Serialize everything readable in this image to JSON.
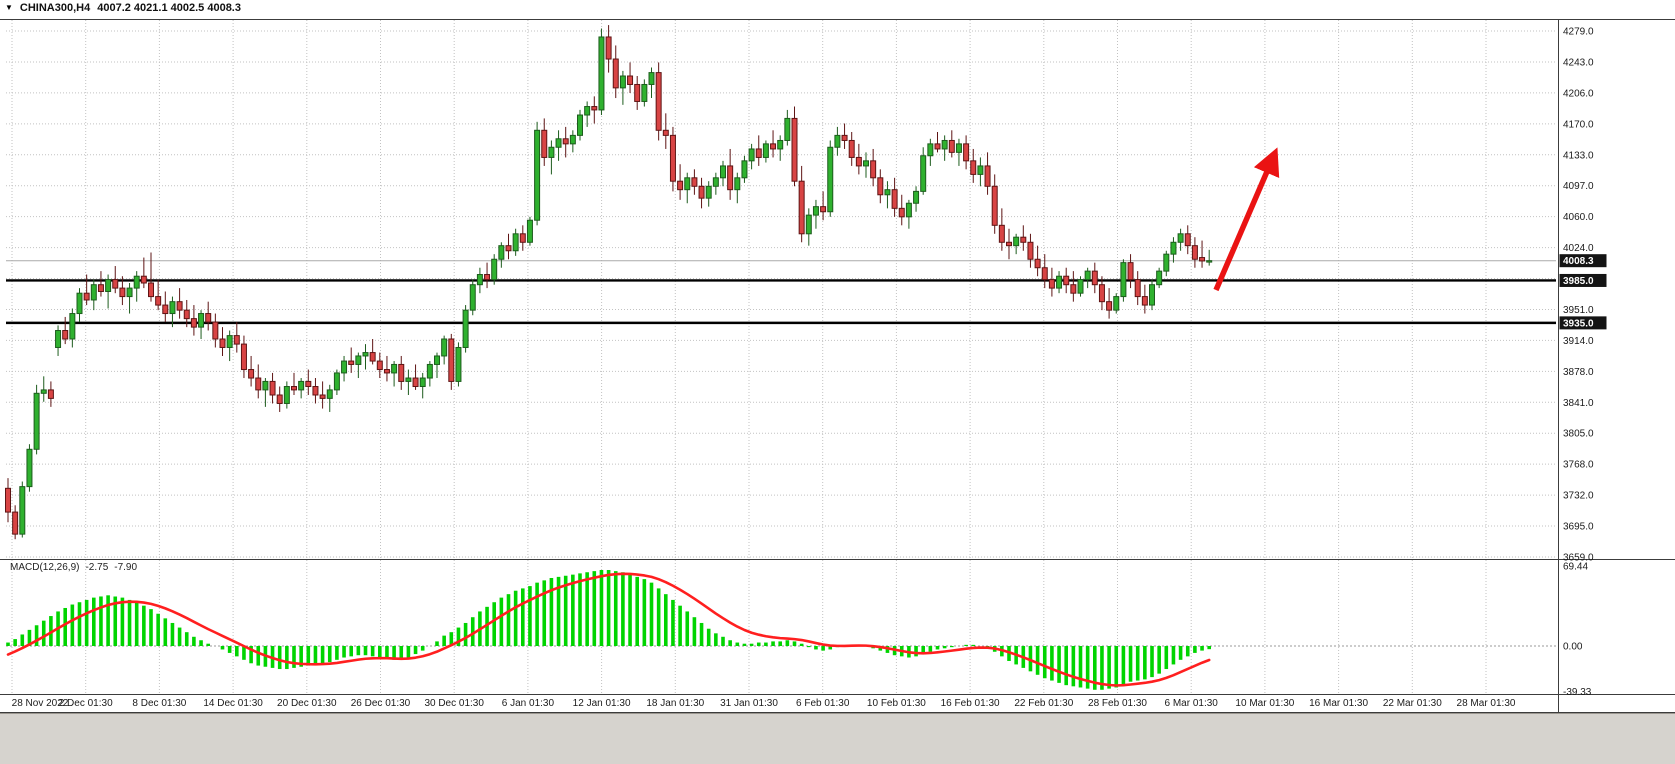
{
  "title": {
    "dropdown_icon": "▼",
    "symbol": "CHINA300,H4",
    "ohlc": "4007.2 4021.1 4002.5 4008.3"
  },
  "price_axis": {
    "labels": [
      "4279.0",
      "4243.0",
      "4206.0",
      "4170.0",
      "4133.0",
      "4097.0",
      "4060.0",
      "4024.0",
      "",
      "3951.0",
      "3914.0",
      "3878.0",
      "3841.0",
      "3805.0",
      "3768.0",
      "3732.0",
      "3695.0",
      "3659.0"
    ],
    "badges": [
      {
        "text": "4008.3",
        "price": 4008.3,
        "kind": "current-price"
      },
      {
        "text": "3985.0",
        "price": 3985.0,
        "kind": "hline"
      },
      {
        "text": "3935.0",
        "price": 3935.0,
        "kind": "hline"
      }
    ]
  },
  "time_axis": {
    "labels": [
      "28 Nov 2022",
      "2 Dec 01:30",
      "8 Dec 01:30",
      "14 Dec 01:30",
      "20 Dec 01:30",
      "26 Dec 01:30",
      "30 Dec 01:30",
      "6 Jan 01:30",
      "12 Jan 01:30",
      "18 Jan 01:30",
      "31 Jan 01:30",
      "6 Feb 01:30",
      "10 Feb 01:30",
      "16 Feb 01:30",
      "22 Feb 01:30",
      "28 Feb 01:30",
      "6 Mar 01:30",
      "10 Mar 01:30",
      "16 Mar 01:30",
      "22 Mar 01:30",
      "28 Mar 01:30"
    ]
  },
  "macd": {
    "label": "MACD(12,26,9)",
    "value_main": "-2.75",
    "value_signal": "-7.90",
    "axis_labels": [
      {
        "text": "69.44",
        "value": 69.44
      },
      {
        "text": "0.00",
        "value": 0
      },
      {
        "text": "-39.33",
        "value": -39.33
      }
    ]
  },
  "annotations": {
    "arrow": {
      "color": "#ea1313",
      "from_price": 3978,
      "to_price": 4155,
      "meaning": "bullish projection"
    }
  },
  "colors": {
    "bull": "#2fb12f",
    "bear": "#d84444",
    "bull_border": "#1d5c1d",
    "bear_border": "#5e1414",
    "histogram": "#00d400",
    "signal": "#ff1f1f",
    "grid": "#c2c2c2",
    "hline": "#000000",
    "current_price_line": "#aaaaaa",
    "badge_bg": "#141414"
  },
  "chart_data": [
    {
      "type": "candlestick",
      "name": "CHINA300 H4",
      "ylabel": "price",
      "ylim": [
        3656,
        4292
      ],
      "hlines": [
        3985.0,
        3935.0
      ],
      "last_price": 4008.3,
      "grid": "dotted",
      "ohlc": [
        [
          3740,
          3752,
          3700,
          3712
        ],
        [
          3712,
          3720,
          3680,
          3686
        ],
        [
          3686,
          3748,
          3682,
          3742
        ],
        [
          3742,
          3792,
          3736,
          3786
        ],
        [
          3786,
          3862,
          3780,
          3852
        ],
        [
          3852,
          3872,
          3842,
          3856
        ],
        [
          3856,
          3866,
          3836,
          3846
        ],
        [
          3906,
          3932,
          3896,
          3926
        ],
        [
          3926,
          3942,
          3910,
          3916
        ],
        [
          3916,
          3952,
          3906,
          3946
        ],
        [
          3946,
          3976,
          3936,
          3970
        ],
        [
          3970,
          3992,
          3956,
          3962
        ],
        [
          3962,
          3986,
          3950,
          3980
        ],
        [
          3980,
          3996,
          3966,
          3972
        ],
        [
          3972,
          3992,
          3952,
          3986
        ],
        [
          3986,
          4002,
          3970,
          3976
        ],
        [
          3976,
          3990,
          3956,
          3966
        ],
        [
          3966,
          3982,
          3946,
          3976
        ],
        [
          3976,
          3996,
          3960,
          3990
        ],
        [
          3990,
          4012,
          3976,
          3982
        ],
        [
          3982,
          4018,
          3960,
          3966
        ],
        [
          3966,
          3986,
          3950,
          3956
        ],
        [
          3956,
          3972,
          3936,
          3946
        ],
        [
          3946,
          3966,
          3930,
          3960
        ],
        [
          3960,
          3976,
          3940,
          3950
        ],
        [
          3950,
          3962,
          3930,
          3940
        ],
        [
          3940,
          3956,
          3920,
          3930
        ],
        [
          3930,
          3950,
          3916,
          3946
        ],
        [
          3946,
          3960,
          3926,
          3936
        ],
        [
          3936,
          3946,
          3906,
          3916
        ],
        [
          3916,
          3930,
          3896,
          3906
        ],
        [
          3906,
          3926,
          3890,
          3920
        ],
        [
          3920,
          3936,
          3900,
          3910
        ],
        [
          3910,
          3920,
          3870,
          3880
        ],
        [
          3880,
          3896,
          3860,
          3870
        ],
        [
          3870,
          3886,
          3846,
          3856
        ],
        [
          3856,
          3870,
          3836,
          3866
        ],
        [
          3866,
          3876,
          3840,
          3850
        ],
        [
          3850,
          3860,
          3830,
          3840
        ],
        [
          3840,
          3866,
          3834,
          3860
        ],
        [
          3860,
          3876,
          3850,
          3856
        ],
        [
          3856,
          3870,
          3846,
          3866
        ],
        [
          3866,
          3880,
          3850,
          3860
        ],
        [
          3860,
          3870,
          3840,
          3850
        ],
        [
          3850,
          3866,
          3834,
          3846
        ],
        [
          3846,
          3862,
          3830,
          3856
        ],
        [
          3856,
          3880,
          3850,
          3876
        ],
        [
          3876,
          3896,
          3866,
          3890
        ],
        [
          3890,
          3906,
          3876,
          3886
        ],
        [
          3886,
          3900,
          3870,
          3896
        ],
        [
          3896,
          3910,
          3880,
          3900
        ],
        [
          3900,
          3916,
          3886,
          3890
        ],
        [
          3890,
          3900,
          3870,
          3880
        ],
        [
          3880,
          3896,
          3866,
          3876
        ],
        [
          3876,
          3890,
          3860,
          3886
        ],
        [
          3886,
          3896,
          3856,
          3866
        ],
        [
          3866,
          3880,
          3850,
          3870
        ],
        [
          3870,
          3886,
          3856,
          3860
        ],
        [
          3860,
          3876,
          3846,
          3870
        ],
        [
          3870,
          3890,
          3860,
          3886
        ],
        [
          3886,
          3900,
          3870,
          3896
        ],
        [
          3896,
          3920,
          3886,
          3916
        ],
        [
          3916,
          3922,
          3856,
          3866
        ],
        [
          3866,
          3912,
          3860,
          3906
        ],
        [
          3906,
          3956,
          3900,
          3950
        ],
        [
          3950,
          3986,
          3944,
          3980
        ],
        [
          3980,
          4000,
          3970,
          3992
        ],
        [
          3992,
          4006,
          3976,
          3986
        ],
        [
          3986,
          4016,
          3980,
          4010
        ],
        [
          4010,
          4030,
          4000,
          4026
        ],
        [
          4026,
          4040,
          4010,
          4020
        ],
        [
          4020,
          4046,
          4014,
          4040
        ],
        [
          4040,
          4050,
          4020,
          4030
        ],
        [
          4030,
          4060,
          4026,
          4056
        ],
        [
          4056,
          4172,
          4050,
          4162
        ],
        [
          4162,
          4176,
          4120,
          4130
        ],
        [
          4130,
          4150,
          4110,
          4142
        ],
        [
          4142,
          4162,
          4126,
          4152
        ],
        [
          4152,
          4166,
          4130,
          4146
        ],
        [
          4146,
          4162,
          4136,
          4156
        ],
        [
          4156,
          4186,
          4150,
          4180
        ],
        [
          4180,
          4196,
          4166,
          4190
        ],
        [
          4190,
          4202,
          4170,
          4186
        ],
        [
          4186,
          4282,
          4180,
          4272
        ],
        [
          4272,
          4286,
          4230,
          4246
        ],
        [
          4246,
          4262,
          4200,
          4212
        ],
        [
          4212,
          4232,
          4192,
          4226
        ],
        [
          4226,
          4242,
          4206,
          4216
        ],
        [
          4216,
          4226,
          4186,
          4196
        ],
        [
          4196,
          4222,
          4190,
          4216
        ],
        [
          4216,
          4236,
          4200,
          4230
        ],
        [
          4230,
          4242,
          4150,
          4162
        ],
        [
          4162,
          4182,
          4140,
          4156
        ],
        [
          4156,
          4166,
          4090,
          4102
        ],
        [
          4102,
          4122,
          4080,
          4092
        ],
        [
          4092,
          4112,
          4076,
          4106
        ],
        [
          4106,
          4116,
          4086,
          4096
        ],
        [
          4096,
          4106,
          4070,
          4082
        ],
        [
          4082,
          4102,
          4072,
          4096
        ],
        [
          4096,
          4112,
          4086,
          4106
        ],
        [
          4106,
          4126,
          4096,
          4120
        ],
        [
          4120,
          4140,
          4080,
          4092
        ],
        [
          4092,
          4112,
          4076,
          4106
        ],
        [
          4106,
          4132,
          4100,
          4126
        ],
        [
          4126,
          4146,
          4116,
          4140
        ],
        [
          4140,
          4156,
          4120,
          4130
        ],
        [
          4130,
          4150,
          4124,
          4146
        ],
        [
          4146,
          4162,
          4130,
          4140
        ],
        [
          4140,
          4156,
          4126,
          4150
        ],
        [
          4150,
          4186,
          4144,
          4176
        ],
        [
          4176,
          4190,
          4096,
          4102
        ],
        [
          4102,
          4120,
          4030,
          4040
        ],
        [
          4040,
          4070,
          4026,
          4062
        ],
        [
          4062,
          4080,
          4046,
          4072
        ],
        [
          4072,
          4090,
          4056,
          4066
        ],
        [
          4066,
          4150,
          4060,
          4142
        ],
        [
          4142,
          4166,
          4132,
          4156
        ],
        [
          4156,
          4170,
          4140,
          4150
        ],
        [
          4150,
          4160,
          4120,
          4130
        ],
        [
          4130,
          4146,
          4110,
          4120
        ],
        [
          4120,
          4136,
          4106,
          4126
        ],
        [
          4126,
          4140,
          4096,
          4106
        ],
        [
          4106,
          4116,
          4076,
          4086
        ],
        [
          4086,
          4102,
          4070,
          4092
        ],
        [
          4092,
          4106,
          4060,
          4070
        ],
        [
          4070,
          4086,
          4050,
          4060
        ],
        [
          4060,
          4080,
          4046,
          4076
        ],
        [
          4076,
          4096,
          4066,
          4090
        ],
        [
          4090,
          4142,
          4086,
          4132
        ],
        [
          4132,
          4152,
          4120,
          4146
        ],
        [
          4146,
          4160,
          4136,
          4140
        ],
        [
          4140,
          4156,
          4126,
          4150
        ],
        [
          4150,
          4162,
          4130,
          4136
        ],
        [
          4136,
          4152,
          4120,
          4146
        ],
        [
          4146,
          4156,
          4116,
          4126
        ],
        [
          4126,
          4140,
          4100,
          4110
        ],
        [
          4110,
          4130,
          4096,
          4120
        ],
        [
          4120,
          4136,
          4086,
          4096
        ],
        [
          4096,
          4110,
          4040,
          4050
        ],
        [
          4050,
          4070,
          4020,
          4030
        ],
        [
          4030,
          4046,
          4010,
          4026
        ],
        [
          4026,
          4040,
          4016,
          4036
        ],
        [
          4036,
          4050,
          4020,
          4030
        ],
        [
          4030,
          4040,
          4000,
          4010
        ],
        [
          4010,
          4026,
          3990,
          4000
        ],
        [
          4000,
          4016,
          3976,
          3986
        ],
        [
          3986,
          4000,
          3966,
          3976
        ],
        [
          3976,
          3996,
          3970,
          3990
        ],
        [
          3990,
          4000,
          3970,
          3980
        ],
        [
          3980,
          3996,
          3960,
          3970
        ],
        [
          3970,
          3990,
          3966,
          3986
        ],
        [
          3986,
          4000,
          3976,
          3996
        ],
        [
          3996,
          4006,
          3970,
          3980
        ],
        [
          3980,
          3990,
          3950,
          3960
        ],
        [
          3960,
          3976,
          3940,
          3950
        ],
        [
          3950,
          3970,
          3946,
          3966
        ],
        [
          3966,
          4010,
          3960,
          4006
        ],
        [
          4006,
          4016,
          3976,
          3986
        ],
        [
          3986,
          3996,
          3956,
          3966
        ],
        [
          3966,
          3980,
          3946,
          3956
        ],
        [
          3956,
          3986,
          3950,
          3980
        ],
        [
          3980,
          4000,
          3976,
          3996
        ],
        [
          3996,
          4020,
          3990,
          4016
        ],
        [
          4016,
          4036,
          4006,
          4030
        ],
        [
          4030,
          4046,
          4020,
          4040
        ],
        [
          4040,
          4050,
          4016,
          4026
        ],
        [
          4026,
          4036,
          4000,
          4010
        ],
        [
          4012,
          4032,
          4000,
          4008
        ],
        [
          4007.2,
          4021.1,
          4002.5,
          4008.3
        ]
      ]
    },
    {
      "type": "bar",
      "name": "MACD(12,26,9) histogram with signal line",
      "ylim": [
        -39.33,
        69.44
      ],
      "last_main": -2.75,
      "last_signal": -7.9,
      "signal_seed": -10,
      "values": [
        3,
        6,
        10,
        14,
        18,
        22,
        26,
        30,
        33,
        36,
        38,
        40,
        42,
        43,
        44,
        43,
        42,
        40,
        38,
        35,
        32,
        28,
        24,
        20,
        16,
        12,
        8,
        5,
        2,
        0,
        -3,
        -6,
        -9,
        -12,
        -15,
        -17,
        -18,
        -19,
        -20,
        -20,
        -19,
        -18,
        -17,
        -16,
        -15,
        -14,
        -12,
        -10,
        -9,
        -8,
        -8,
        -9,
        -10,
        -11,
        -12,
        -12,
        -10,
        -7,
        -4,
        0,
        4,
        9,
        12,
        16,
        20,
        25,
        30,
        34,
        38,
        42,
        45,
        48,
        50,
        52,
        55,
        57,
        59,
        60,
        61,
        62,
        63,
        64,
        65,
        66,
        66,
        65,
        64,
        62,
        60,
        58,
        55,
        50,
        45,
        40,
        35,
        30,
        25,
        20,
        15,
        11,
        8,
        5,
        3,
        2,
        2,
        3,
        3,
        4,
        4,
        5,
        4,
        2,
        -1,
        -3,
        -4,
        -3,
        -1,
        0,
        1,
        1,
        0,
        -2,
        -4,
        -6,
        -8,
        -9,
        -10,
        -9,
        -7,
        -5,
        -3,
        -2,
        -1,
        0,
        1,
        1,
        0,
        -2,
        -5,
        -9,
        -13,
        -16,
        -19,
        -22,
        -25,
        -28,
        -30,
        -32,
        -34,
        -35,
        -36,
        -37,
        -38,
        -38,
        -37,
        -36,
        -33,
        -31,
        -30,
        -29,
        -27,
        -24,
        -20,
        -16,
        -12,
        -9,
        -6,
        -4,
        -2.75
      ]
    }
  ]
}
